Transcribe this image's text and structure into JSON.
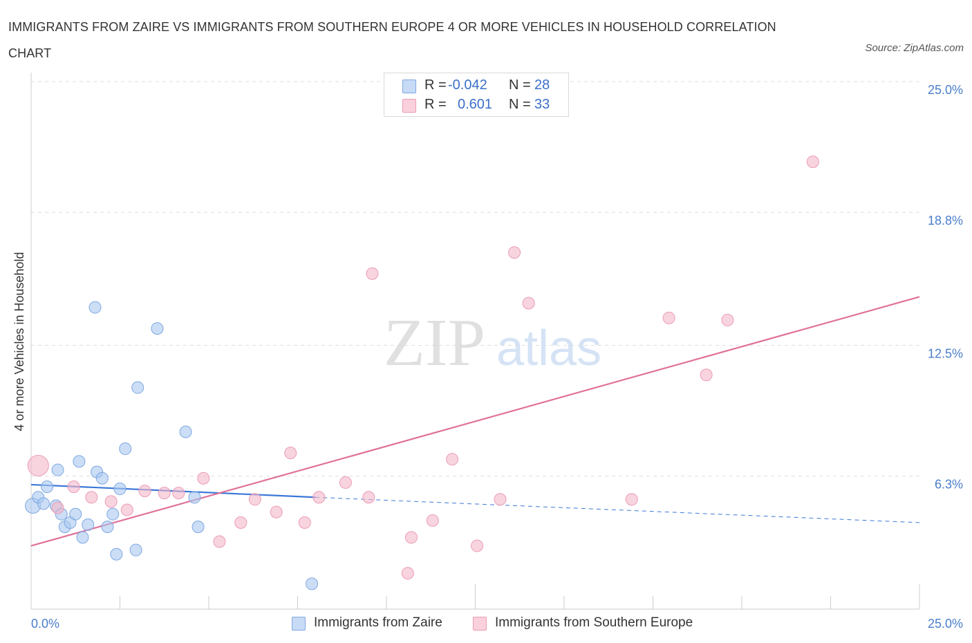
{
  "header": {
    "title": "IMMIGRANTS FROM ZAIRE VS IMMIGRANTS FROM SOUTHERN EUROPE 4 OR MORE VEHICLES IN HOUSEHOLD CORRELATION CHART",
    "source": "Source: ZipAtlas.com"
  },
  "watermark": {
    "zip": "ZIP",
    "atlas": "atlas"
  },
  "stats_legend": {
    "rows": [
      {
        "r_label": "R =",
        "r_value": "-0.042",
        "n_label": "N =",
        "n_value": "28",
        "color": "#a9c8f0"
      },
      {
        "r_label": "R =",
        "r_value": "0.601",
        "n_label": "N =",
        "n_value": "33",
        "color": "#f4b8ca"
      }
    ]
  },
  "bottom_legend": {
    "items": [
      {
        "label": "Immigrants from Zaire",
        "color": "#a9c8f0"
      },
      {
        "label": "Immigrants from Southern Europe",
        "color": "#f4b8ca"
      }
    ]
  },
  "chart_data": {
    "type": "scatter",
    "ylabel": "4 or more Vehicles in Household",
    "x_tick_labels": [
      "0.0%",
      "25.0%"
    ],
    "y_tick_labels": [
      "6.3%",
      "12.5%",
      "18.8%",
      "25.0%"
    ],
    "y_tick_values": [
      6.3,
      12.5,
      18.8,
      25.0
    ],
    "xlim": [
      0,
      25
    ],
    "ylim": [
      0,
      25
    ],
    "grid": true,
    "colors": {
      "zaire": "#3b78d8",
      "southern_europe": "#e07099",
      "zaire_fill": "#a9c8f0",
      "se_fill": "#f4b8ca"
    },
    "series": [
      {
        "name": "Immigrants from Zaire",
        "points": [
          [
            0.05,
            4.9
          ],
          [
            0.2,
            5.3
          ],
          [
            0.35,
            5.0
          ],
          [
            0.45,
            5.8
          ],
          [
            0.7,
            4.9
          ],
          [
            0.75,
            6.6
          ],
          [
            0.85,
            4.5
          ],
          [
            0.95,
            3.9
          ],
          [
            1.1,
            4.1
          ],
          [
            1.25,
            4.5
          ],
          [
            1.35,
            7.0
          ],
          [
            1.45,
            3.4
          ],
          [
            1.6,
            4.0
          ],
          [
            1.8,
            14.3
          ],
          [
            1.85,
            6.5
          ],
          [
            2.0,
            6.2
          ],
          [
            2.15,
            3.9
          ],
          [
            2.3,
            4.5
          ],
          [
            2.4,
            2.6
          ],
          [
            2.5,
            5.7
          ],
          [
            2.65,
            7.6
          ],
          [
            2.95,
            2.8
          ],
          [
            3.0,
            10.5
          ],
          [
            3.55,
            13.3
          ],
          [
            4.35,
            8.4
          ],
          [
            4.6,
            5.3
          ],
          [
            4.7,
            3.9
          ],
          [
            7.9,
            1.2
          ]
        ],
        "sizes": {
          "0": 22
        },
        "trend": {
          "x": [
            0,
            8.0
          ],
          "y": [
            5.9,
            5.3
          ]
        },
        "trend_extension": {
          "x": [
            8.0,
            25
          ],
          "y": [
            5.3,
            4.1
          ]
        }
      },
      {
        "name": "Immigrants from Southern Europe",
        "points": [
          [
            0.2,
            6.8
          ],
          [
            0.75,
            4.8
          ],
          [
            1.2,
            5.8
          ],
          [
            1.7,
            5.3
          ],
          [
            2.25,
            5.1
          ],
          [
            2.7,
            4.7
          ],
          [
            3.2,
            5.6
          ],
          [
            3.75,
            5.5
          ],
          [
            4.15,
            5.5
          ],
          [
            4.85,
            6.2
          ],
          [
            5.3,
            3.2
          ],
          [
            5.9,
            4.1
          ],
          [
            6.3,
            5.2
          ],
          [
            6.9,
            4.6
          ],
          [
            7.3,
            7.4
          ],
          [
            7.7,
            4.1
          ],
          [
            8.1,
            5.3
          ],
          [
            8.85,
            6.0
          ],
          [
            9.5,
            5.3
          ],
          [
            9.6,
            15.9
          ],
          [
            10.6,
            1.7
          ],
          [
            10.7,
            3.4
          ],
          [
            11.3,
            4.2
          ],
          [
            11.85,
            7.1
          ],
          [
            12.55,
            3.0
          ],
          [
            13.2,
            5.2
          ],
          [
            13.6,
            16.9
          ],
          [
            14.0,
            14.5
          ],
          [
            16.9,
            5.2
          ],
          [
            17.95,
            13.8
          ],
          [
            19.0,
            11.1
          ],
          [
            19.6,
            13.7
          ],
          [
            22.0,
            21.2
          ]
        ],
        "sizes": {
          "0": 30
        },
        "trend": {
          "x": [
            0,
            25
          ],
          "y": [
            3.0,
            14.8
          ]
        }
      }
    ]
  }
}
